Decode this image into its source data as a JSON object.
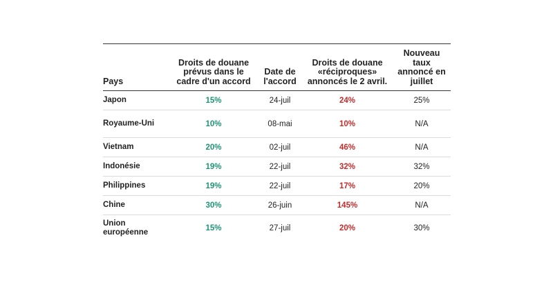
{
  "table": {
    "headers": {
      "pays": "Pays",
      "droits_accord": "Droits de douane prévus dans le cadre d'un accord",
      "date_accord": "Date de l'accord",
      "droits_reciproques": "Droits de douane «réciproques» annoncés le 2 avril.",
      "nouveau_taux": "Nouveau taux annoncé en juillet"
    },
    "rows": [
      {
        "pays": "Japon",
        "droits_accord": "15%",
        "date_accord": "24-juil",
        "droits_reciproques": "24%",
        "nouveau_taux": "25%"
      },
      {
        "pays": "Royaume-Uni",
        "droits_accord": "10%",
        "date_accord": "08-mai",
        "droits_reciproques": "10%",
        "nouveau_taux": "N/A"
      },
      {
        "pays": "Vietnam",
        "droits_accord": "20%",
        "date_accord": "02-juil",
        "droits_reciproques": "46%",
        "nouveau_taux": "N/A"
      },
      {
        "pays": "Indonésie",
        "droits_accord": "19%",
        "date_accord": "22-juil",
        "droits_reciproques": "32%",
        "nouveau_taux": "32%"
      },
      {
        "pays": "Philippines",
        "droits_accord": "19%",
        "date_accord": "22-juil",
        "droits_reciproques": "17%",
        "nouveau_taux": "20%"
      },
      {
        "pays": "Chine",
        "droits_accord": "30%",
        "date_accord": "26-juin",
        "droits_reciproques": "145%",
        "nouveau_taux": "N/A"
      },
      {
        "pays": "Union européenne",
        "droits_accord": "15%",
        "date_accord": "27-juil",
        "droits_reciproques": "20%",
        "nouveau_taux": "30%"
      }
    ]
  },
  "colors": {
    "accord": "#1f9477",
    "reciproques": "#c62b2b",
    "text": "#222222",
    "rule": "#333333",
    "row_divider": "#dcdcdc"
  }
}
